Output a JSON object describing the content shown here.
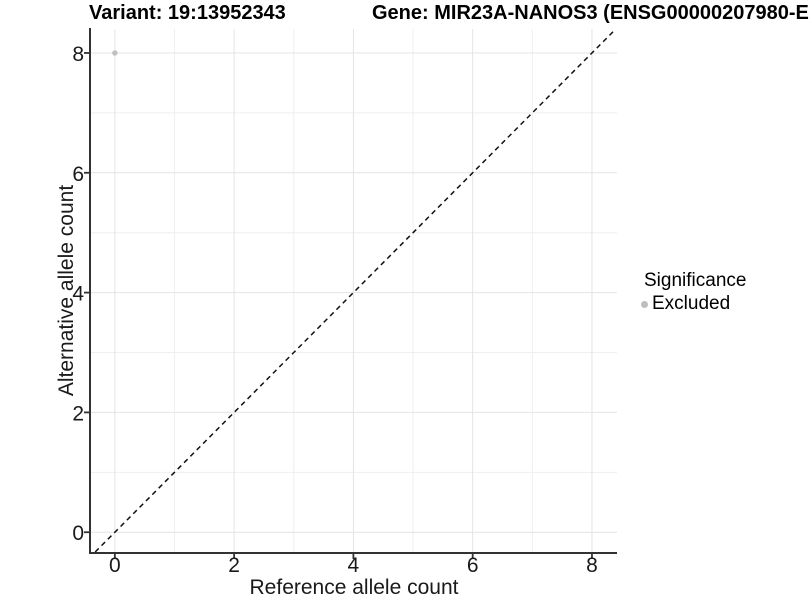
{
  "header": {
    "variant_title": "Variant: 19:13952343",
    "gene_title": "Gene: MIR23A-NANOS3 (ENSG00000207980-E"
  },
  "legend": {
    "title": "Significance",
    "items": [
      {
        "label": "Excluded",
        "color": "#bebebe",
        "marker": "circle"
      }
    ]
  },
  "chart_data": {
    "type": "scatter",
    "title": "Variant: 19:13952343",
    "title_right": "Gene: MIR23A-NANOS3 (ENSG00000207980-E",
    "xlabel": "Reference allele count",
    "ylabel": "Alternative allele count",
    "xlim": [
      -0.4,
      8.42
    ],
    "ylim": [
      -0.33,
      8.4
    ],
    "x_ticks": [
      0,
      2,
      4,
      6,
      8
    ],
    "y_ticks": [
      0,
      2,
      4,
      6,
      8
    ],
    "x_minor_ticks": [
      1,
      3,
      5,
      7
    ],
    "y_minor_ticks": [
      1,
      3,
      5,
      7
    ],
    "grid": "major+minor",
    "legend": {
      "title": "Significance",
      "position": "right",
      "entries": [
        "Excluded"
      ]
    },
    "series": [
      {
        "name": "Excluded",
        "color": "#c0c0c0",
        "points": [
          {
            "x": 0,
            "y": 8
          }
        ]
      }
    ],
    "reference_line": {
      "type": "identity",
      "slope": 1,
      "intercept": 0,
      "linestyle": "dashed",
      "color": "#111111"
    },
    "colors": {
      "grid_major": "#e4e4e4",
      "grid_minor": "#efefef",
      "axis_line": "#333333",
      "tick_mark": "#333333",
      "tick_text": "#1a1a1a",
      "axis_title_text": "#1a1a1a",
      "point": "#c0c0c0",
      "background": "#ffffff"
    }
  }
}
